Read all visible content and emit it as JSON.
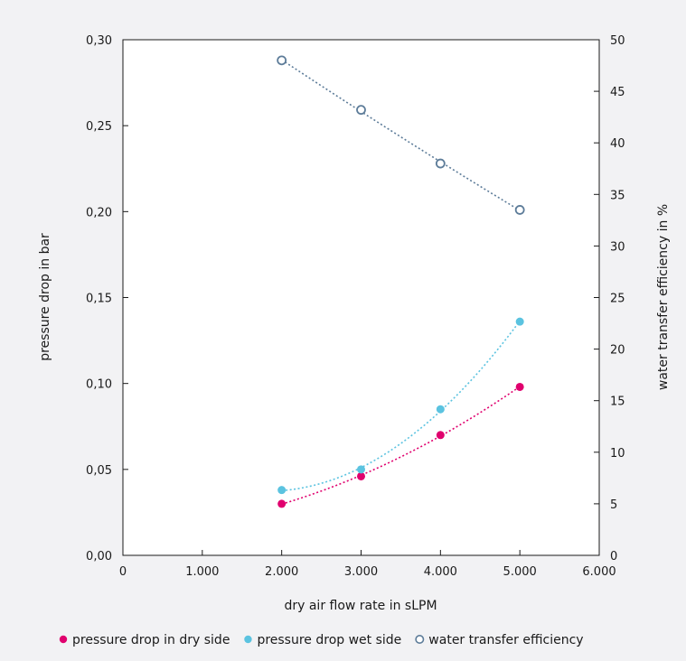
{
  "chart_data": {
    "type": "scatter",
    "title": "",
    "xlabel": "dry air flow rate in sLPM",
    "ylabel": "pressure drop in bar",
    "y2label": "water transfer efficiency in %",
    "xlim": [
      0,
      6000
    ],
    "ylim": [
      0,
      0.3
    ],
    "y2lim": [
      0,
      50
    ],
    "x_ticks": [
      0,
      1000,
      2000,
      3000,
      4000,
      5000,
      6000
    ],
    "x_tick_labels": [
      "0",
      "1.000",
      "2.000",
      "3.000",
      "4.000",
      "5.000",
      "6.000"
    ],
    "y_ticks": [
      0,
      0.05,
      0.1,
      0.15,
      0.2,
      0.25,
      0.3
    ],
    "y_tick_labels": [
      "0,00",
      "0,05",
      "0,10",
      "0,15",
      "0,20",
      "0,25",
      "0,30"
    ],
    "y2_ticks": [
      0,
      5,
      10,
      15,
      20,
      25,
      30,
      35,
      40,
      45,
      50
    ],
    "y2_tick_labels": [
      "0",
      "5",
      "10",
      "15",
      "20",
      "25",
      "30",
      "35",
      "40",
      "45",
      "50"
    ],
    "grid": false,
    "legend_position": "bottom",
    "x": [
      2000,
      3000,
      4000,
      5000
    ],
    "series": [
      {
        "name": "pressure drop in dry side",
        "axis": "left",
        "marker": "filled",
        "color": "#e0006e",
        "values": [
          0.03,
          0.046,
          0.07,
          0.098
        ]
      },
      {
        "name": "pressure drop wet side",
        "axis": "left",
        "marker": "filled",
        "color": "#5bc3e0",
        "values": [
          0.038,
          0.05,
          0.085,
          0.136
        ]
      },
      {
        "name": "water transfer efficiency",
        "axis": "right",
        "marker": "hollow",
        "color": "#5d7c99",
        "values": [
          48.0,
          43.2,
          38.0,
          33.5
        ]
      }
    ]
  }
}
